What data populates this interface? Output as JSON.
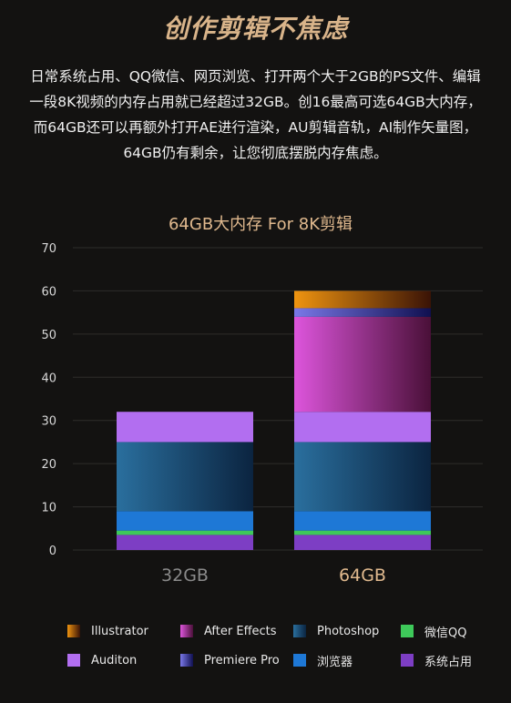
{
  "headline": "创作剪辑不焦虑",
  "paragraph": [
    "日常系统占用、QQ微信、网页浏览、打开两个大于2GB的PS文件、编辑",
    "一段8K视频的内存占用就已经超过32GB。创16最高可选64GB大内存，",
    "而64GB还可以再额外打开AE进行渲染，AU剪辑音轨，AI制作矢量图，",
    "64GB仍有剩余，让您彻底摆脱内存焦虑。"
  ],
  "chart_data": {
    "type": "bar",
    "stacked": true,
    "title": "64GB大内存 For 8K剪辑",
    "categories": [
      "32GB",
      "64GB"
    ],
    "ylim": [
      0,
      70
    ],
    "yticks": [
      0,
      10,
      20,
      30,
      40,
      50,
      60,
      70
    ],
    "grid": true,
    "legend_position": "bottom",
    "series": [
      {
        "name": "系统占用",
        "values": [
          3.5,
          3.5
        ],
        "color": "#7d3ec4"
      },
      {
        "name": "微信QQ",
        "values": [
          1,
          1
        ],
        "color": "#3ec95a"
      },
      {
        "name": "浏览器",
        "values": [
          4.5,
          4.5
        ],
        "color": "#1e78d6"
      },
      {
        "name": "Photoshop",
        "values": [
          16,
          16
        ],
        "color": "#1d4f78"
      },
      {
        "name": "Auditon",
        "values": [
          7,
          7
        ],
        "color": "#b26ef0"
      },
      {
        "name": "After Effects",
        "values": [
          0,
          22
        ],
        "color": "#d24dd8"
      },
      {
        "name": "Premiere Pro",
        "values": [
          0,
          2
        ],
        "color": "#5a5ad0"
      },
      {
        "name": "Illustrator",
        "values": [
          0,
          4
        ],
        "color": "#e0820a"
      }
    ]
  },
  "legend_order": [
    "Illustrator",
    "After Effects",
    "Photoshop",
    "微信QQ",
    "Auditon",
    "Premiere Pro",
    "浏览器",
    "系统占用"
  ],
  "colors": {
    "headline": "#d9b48a",
    "chart_title": "#e0b98e",
    "label_32": "#8a8a8a",
    "label_64": "#e0b98e",
    "grid": "#2e2d2b"
  }
}
